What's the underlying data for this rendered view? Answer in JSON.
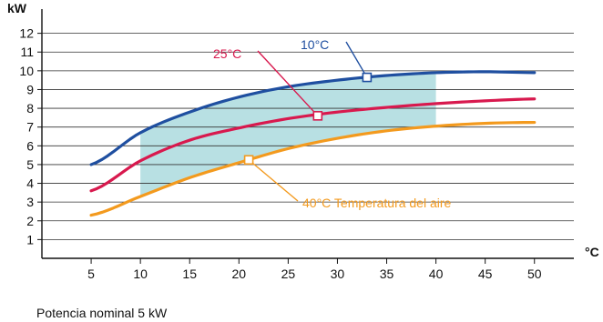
{
  "chart_data": {
    "type": "line",
    "title": "",
    "xlabel": "",
    "ylabel": "",
    "y_unit": "kW",
    "x_unit": "°C",
    "xlim": [
      0,
      54
    ],
    "ylim": [
      0,
      13
    ],
    "x_ticks": [
      5,
      10,
      15,
      20,
      25,
      30,
      35,
      40,
      45,
      50
    ],
    "y_ticks": [
      1,
      2,
      3,
      4,
      5,
      6,
      7,
      8,
      9,
      10,
      11,
      12
    ],
    "grid": "horizontal",
    "shaded_region": {
      "color": "#b8e0e3",
      "x_range": [
        10,
        40
      ],
      "upper_series": "10°C",
      "lower_series": "40°C"
    },
    "series": [
      {
        "name": "10°C",
        "color": "#1f4fa0",
        "x": [
          5,
          10,
          15,
          20,
          25,
          30,
          35,
          40,
          45,
          50
        ],
        "y": [
          5.0,
          6.7,
          7.8,
          8.6,
          9.15,
          9.5,
          9.75,
          9.9,
          9.95,
          9.9
        ],
        "label": "10°C",
        "marker": {
          "x": 33,
          "y": 9.65
        }
      },
      {
        "name": "25°C",
        "color": "#d8194e",
        "x": [
          5,
          10,
          15,
          20,
          25,
          30,
          35,
          40,
          45,
          50
        ],
        "y": [
          3.6,
          5.2,
          6.3,
          6.95,
          7.45,
          7.8,
          8.05,
          8.25,
          8.4,
          8.5
        ],
        "label": "25°C",
        "marker": {
          "x": 28,
          "y": 7.6
        }
      },
      {
        "name": "40°C",
        "color": "#f39a1e",
        "x": [
          5,
          10,
          15,
          20,
          25,
          30,
          35,
          40,
          45,
          50
        ],
        "y": [
          2.3,
          3.3,
          4.3,
          5.1,
          5.85,
          6.4,
          6.8,
          7.05,
          7.2,
          7.25
        ],
        "label": "40°C Temperatura del aire",
        "marker": {
          "x": 21,
          "y": 5.25
        }
      }
    ]
  },
  "footnote": "Potencia nominal 5 kW"
}
